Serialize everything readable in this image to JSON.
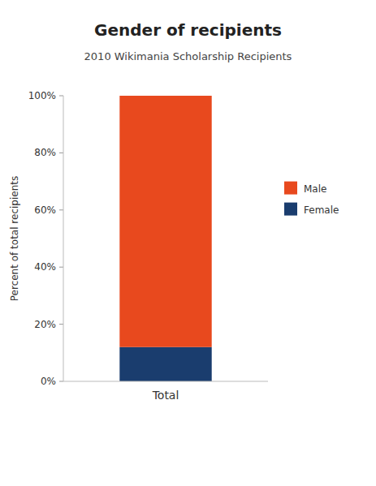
{
  "chart_data": {
    "type": "bar",
    "stacked": true,
    "title": "Gender of recipients",
    "subtitle": "2010 Wikimania Scholarship Recipients",
    "y_label": "Percent of total recipients",
    "categories": [
      "Total"
    ],
    "series": [
      {
        "name": "Female",
        "color": "#1a3d6e",
        "values": [
          12.0
        ]
      },
      {
        "name": "Male",
        "color": "#e8491e",
        "values": [
          88.0
        ]
      }
    ],
    "ylim": [
      0,
      100
    ],
    "yticks": [
      {
        "value": 0,
        "label": "0%"
      },
      {
        "value": 20,
        "label": "20%"
      },
      {
        "value": 40,
        "label": "40%"
      },
      {
        "value": 60,
        "label": "60%"
      },
      {
        "value": 80,
        "label": "80%"
      },
      {
        "value": 100,
        "label": "100%"
      }
    ],
    "grid": false,
    "legend": "right"
  }
}
